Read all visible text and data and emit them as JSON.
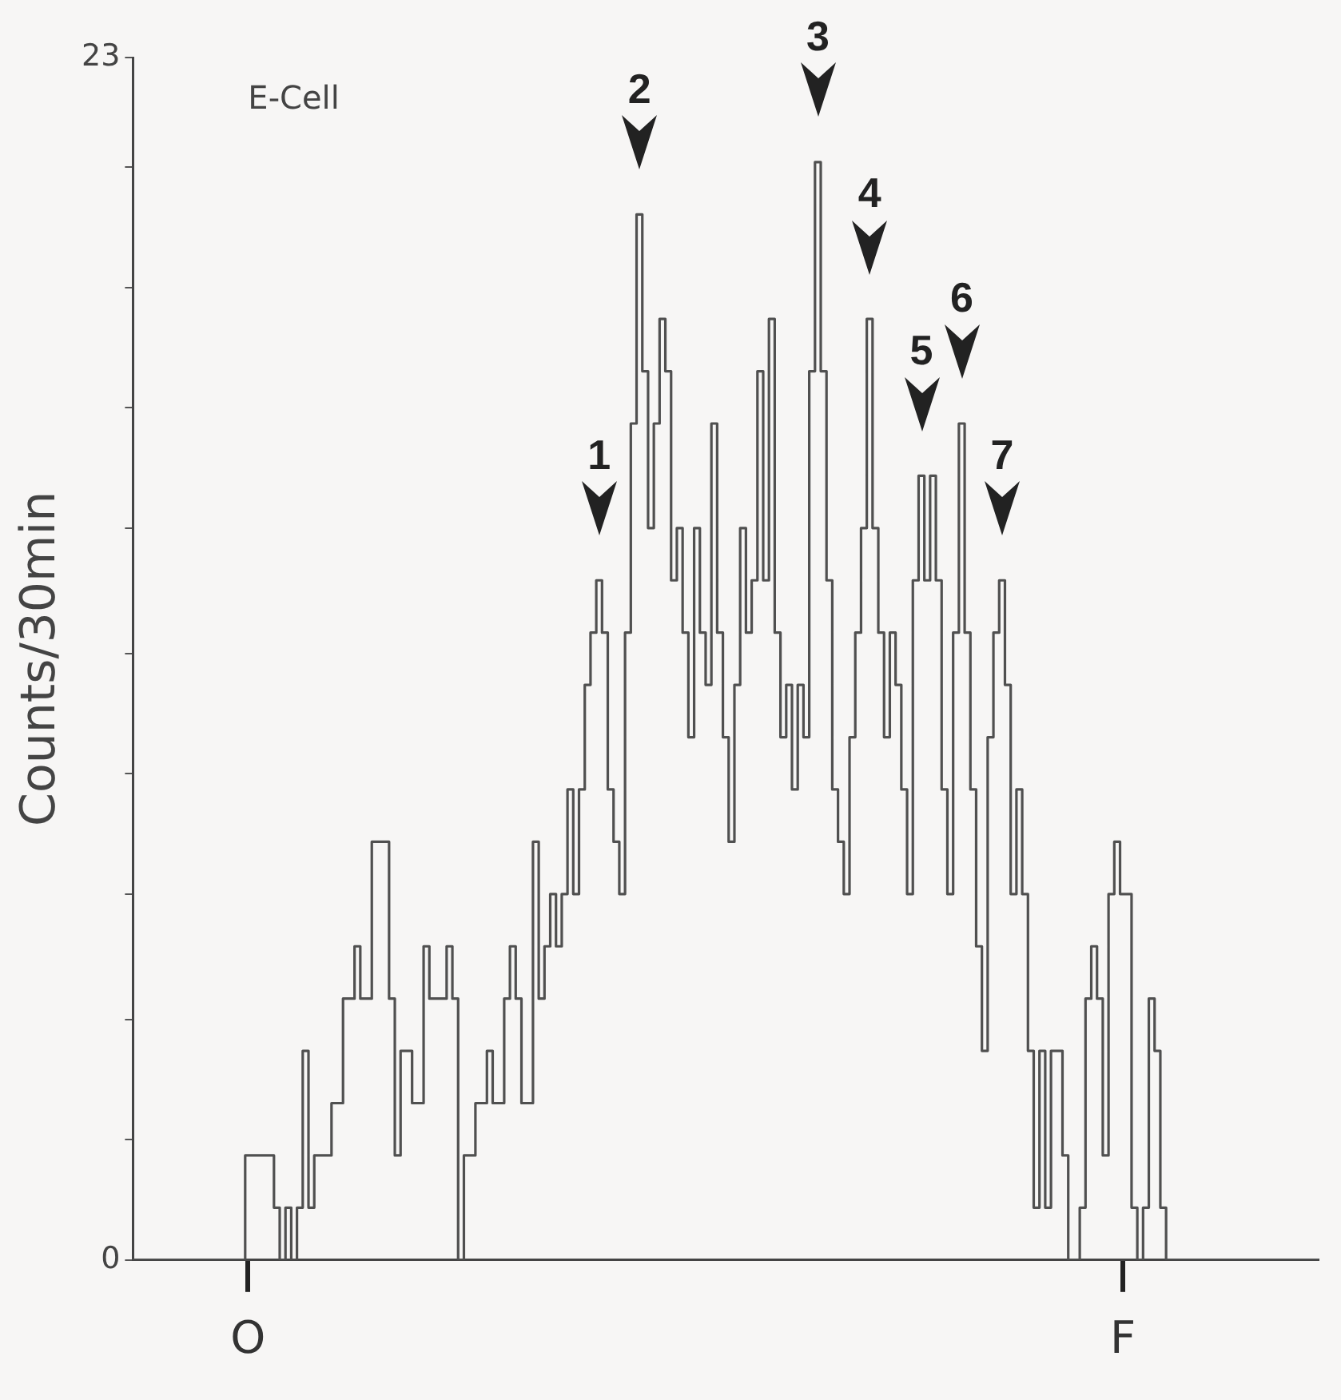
{
  "chart_data": {
    "type": "step",
    "ylabel": "Counts/30min",
    "color": "#505050",
    "annotations": [
      "E-Cell",
      {
        "text": "1",
        "y": 13
      },
      {
        "text": "2",
        "y": 20
      },
      {
        "text": "3",
        "y": 21
      },
      {
        "text": "4",
        "y": 18
      },
      {
        "text": "5",
        "y": 15
      },
      {
        "text": "6",
        "y": 16
      },
      {
        "text": "7",
        "y": 13
      }
    ],
    "categories": [
      null,
      null,
      null,
      null,
      null,
      null,
      null,
      null,
      null,
      null,
      null,
      null,
      null,
      null,
      null,
      null,
      null,
      null,
      null,
      null,
      "O",
      null,
      null,
      null,
      null,
      null,
      null,
      null,
      null,
      null,
      null,
      null,
      null,
      null,
      null,
      null,
      null,
      null,
      null,
      null,
      null,
      null,
      null,
      null,
      null,
      null,
      null,
      null,
      null,
      null,
      null,
      null,
      null,
      null,
      null,
      null,
      null,
      null,
      null,
      null,
      null,
      null,
      null,
      null,
      null,
      null,
      null,
      null,
      null,
      null,
      null,
      null,
      null,
      null,
      null,
      null,
      null,
      null,
      null,
      null,
      null,
      null,
      null,
      null,
      null,
      null,
      null,
      null,
      null,
      null,
      null,
      null,
      null,
      null,
      null,
      null,
      null,
      null,
      null,
      null,
      null,
      null,
      null,
      null,
      null,
      null,
      null,
      null,
      null,
      null,
      null,
      null,
      null,
      null,
      null,
      null,
      null,
      null,
      null,
      null,
      null,
      null,
      null,
      null,
      null,
      null,
      null,
      null,
      null,
      null,
      null,
      null,
      null,
      null,
      null,
      null,
      null,
      null,
      null,
      null,
      null,
      null,
      null,
      null,
      null,
      null,
      null,
      null,
      null,
      null,
      null,
      null,
      null,
      null,
      null,
      null,
      null,
      null,
      null,
      null,
      null,
      null,
      null,
      null,
      null,
      null,
      null,
      null,
      null,
      null,
      null,
      null,
      "F",
      null,
      null,
      null,
      null,
      null,
      null,
      null,
      null,
      null,
      null,
      null,
      null,
      null,
      null,
      null,
      null,
      null,
      null,
      null,
      null,
      null,
      null,
      null,
      null,
      null,
      null,
      null,
      null,
      null,
      null,
      null,
      null,
      null,
      null
    ],
    "values": [
      0,
      0,
      0,
      0,
      0,
      0,
      0,
      0,
      0,
      0,
      0,
      0,
      0,
      0,
      0,
      0,
      0,
      0,
      0,
      0,
      2,
      2,
      2,
      2,
      2,
      1,
      0,
      1,
      0,
      1,
      4,
      1,
      2,
      2,
      2,
      3,
      3,
      5,
      5,
      6,
      5,
      5,
      8,
      8,
      8,
      5,
      2,
      4,
      4,
      3,
      3,
      6,
      5,
      5,
      5,
      6,
      5,
      0,
      2,
      2,
      3,
      3,
      4,
      3,
      3,
      5,
      6,
      5,
      3,
      3,
      8,
      5,
      6,
      7,
      6,
      7,
      9,
      7,
      9,
      11,
      12,
      13,
      12,
      9,
      8,
      7,
      12,
      16,
      20,
      17,
      14,
      16,
      18,
      17,
      13,
      14,
      12,
      10,
      14,
      12,
      11,
      16,
      12,
      10,
      8,
      11,
      14,
      12,
      13,
      17,
      13,
      18,
      12,
      10,
      11,
      9,
      11,
      10,
      17,
      21,
      17,
      13,
      9,
      8,
      7,
      10,
      12,
      14,
      18,
      14,
      12,
      10,
      12,
      11,
      9,
      7,
      13,
      15,
      13,
      15,
      13,
      9,
      7,
      12,
      16,
      12,
      9,
      6,
      4,
      10,
      12,
      13,
      11,
      7,
      9,
      7,
      4,
      1,
      4,
      1,
      4,
      4,
      2,
      0,
      0,
      1,
      5,
      6,
      5,
      2,
      7,
      8,
      7,
      7,
      1,
      0,
      1,
      5,
      4,
      1,
      0,
      0,
      0,
      0,
      0,
      0,
      0,
      0,
      0,
      0,
      0,
      0,
      0,
      0,
      0,
      0,
      0,
      0,
      0,
      0,
      0,
      0,
      0,
      0,
      0,
      0,
      0
    ],
    "ylim": [
      0,
      23
    ],
    "yticks": [
      0,
      {
        "value": 2.3,
        "label": null
      },
      {
        "value": 4.6,
        "label": null
      },
      {
        "value": 7,
        "label": null
      },
      {
        "value": 9.3,
        "label": null
      },
      {
        "value": 11.6,
        "label": null
      },
      {
        "value": 14,
        "label": null
      },
      {
        "value": 16.3,
        "label": null
      },
      {
        "value": 18.6,
        "label": null
      },
      {
        "value": 20.9,
        "label": null
      },
      23
    ]
  }
}
